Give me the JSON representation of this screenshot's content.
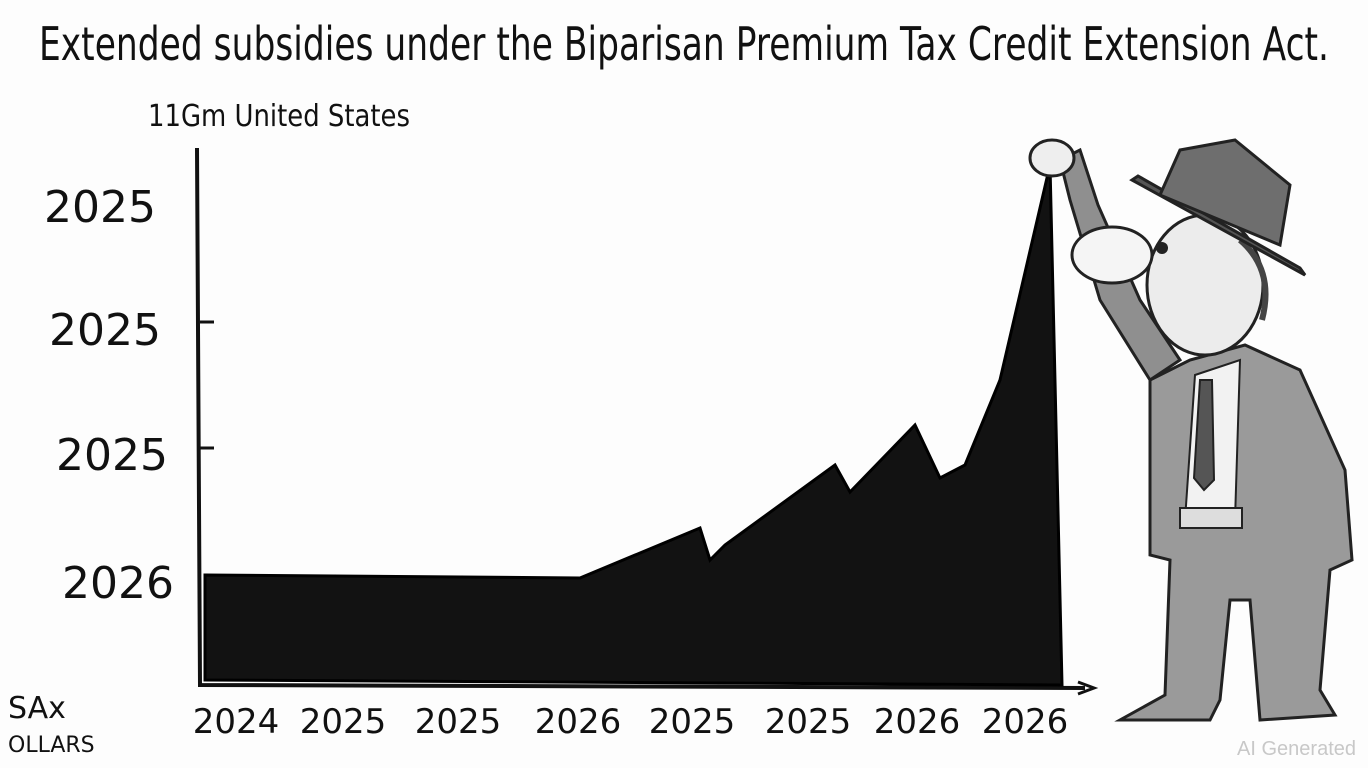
{
  "header": {
    "title": "Extended subsidies under the Biparisan Premium Tax Credit Extension Act.",
    "subtitle": "11Gm United States"
  },
  "y_labels": [
    "2025",
    "2025",
    "2025",
    "2026"
  ],
  "x_labels": [
    "2024",
    "2025",
    "2025",
    "2026",
    "2025",
    "2025",
    "2026",
    "2026"
  ],
  "signature": [
    "SAx",
    "OLLARS"
  ],
  "watermark": "AI Generated"
}
